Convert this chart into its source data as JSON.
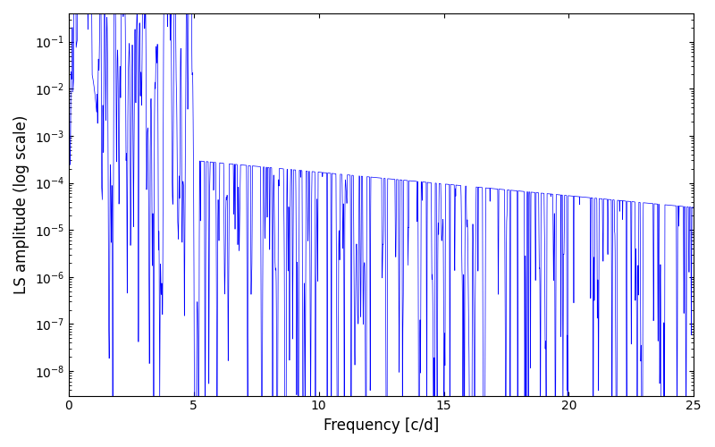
{
  "xlabel": "Frequency [c/d]",
  "ylabel": "LS amplitude (log scale)",
  "line_color": "#0000ff",
  "xlim": [
    0,
    25
  ],
  "ylim": [
    3e-09,
    0.4
  ],
  "freq_max": 25,
  "n_points": 6000,
  "seed": 77,
  "figsize": [
    8.0,
    5.0
  ],
  "dpi": 100,
  "linewidth": 0.5
}
